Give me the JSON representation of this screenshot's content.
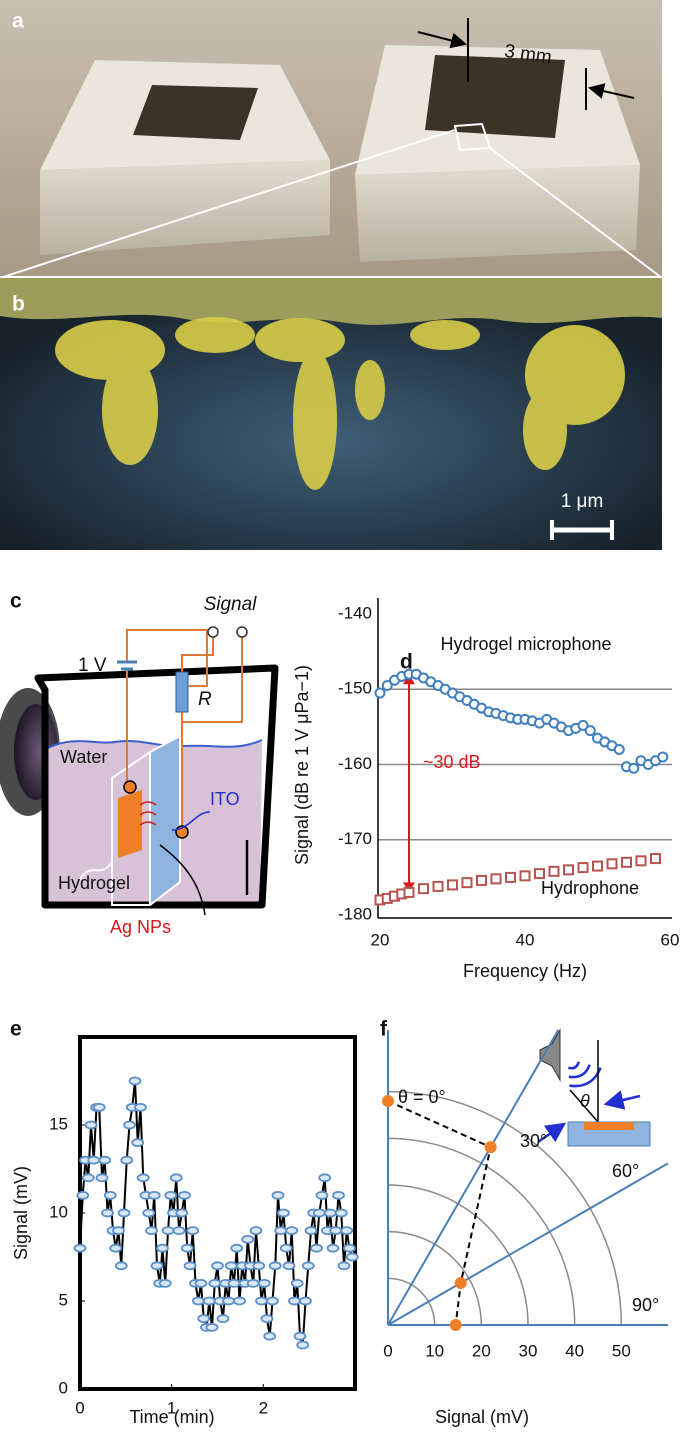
{
  "panel_a": {
    "label": "a",
    "scale_bar": "3 mm"
  },
  "panel_b": {
    "label": "b",
    "scale_bar": "1 μm"
  },
  "panel_c": {
    "label": "c",
    "signal": "Signal",
    "battery": "1 V",
    "resistor": "R",
    "water": "Water",
    "electrode": "ITO",
    "gel": "Hydrogel",
    "particles": "Ag NPs"
  },
  "chart_data": [
    {
      "label": "d",
      "type": "scatter",
      "xlabel": "Frequency (Hz)",
      "ylabel": "Signal (dB re 1 V μPa−1)",
      "xlim": [
        20,
        60
      ],
      "ylim": [
        -180,
        -140
      ],
      "xticks": [
        20,
        40,
        60
      ],
      "yticks": [
        -140,
        -150,
        -160,
        -170,
        -180
      ],
      "grid": true,
      "annotation": "~30 dB",
      "annotation_color": "#d7191c",
      "series": [
        {
          "name": "Hydrogel microphone",
          "color": "#3f7fbf",
          "marker": "circle",
          "x": [
            20,
            21,
            22,
            23,
            24,
            25,
            26,
            27,
            28,
            29,
            30,
            31,
            32,
            33,
            34,
            35,
            36,
            37,
            38,
            39,
            40,
            41,
            42,
            43,
            44,
            45,
            46,
            47,
            48,
            49,
            50,
            51,
            52,
            53,
            54,
            55,
            56,
            57,
            58,
            59
          ],
          "values": [
            -150.5,
            -149.5,
            -148.8,
            -148.3,
            -148,
            -148,
            -148.5,
            -149,
            -149.5,
            -150,
            -150.5,
            -151,
            -151.5,
            -152,
            -152.5,
            -153,
            -153.2,
            -153.5,
            -153.8,
            -154,
            -154,
            -154.2,
            -154.5,
            -154,
            -154.5,
            -155,
            -155.5,
            -155.2,
            -154.8,
            -155.5,
            -156.5,
            -157,
            -157.5,
            -158,
            -160.3,
            -160.5,
            -159.5,
            -160,
            -159.5,
            -159
          ]
        },
        {
          "name": "Hydrophone",
          "color": "#b85450",
          "marker": "square",
          "x": [
            20,
            21,
            22,
            23,
            24,
            26,
            28,
            30,
            32,
            34,
            36,
            38,
            40,
            42,
            44,
            46,
            48,
            50,
            52,
            54,
            56,
            58
          ],
          "values": [
            -178,
            -177.8,
            -177.5,
            -177.2,
            -177,
            -176.5,
            -176.2,
            -176,
            -175.7,
            -175.4,
            -175.2,
            -175,
            -174.8,
            -174.5,
            -174.2,
            -174,
            -173.7,
            -173.5,
            -173.2,
            -173,
            -172.8,
            -172.5
          ]
        }
      ]
    },
    {
      "label": "e",
      "type": "line",
      "xlabel": "Time (min)",
      "ylabel": "Signal (mV)",
      "xlim": [
        0,
        3
      ],
      "ylim": [
        0,
        20
      ],
      "xticks": [
        0,
        1,
        2
      ],
      "yticks": [
        0,
        5,
        10,
        15
      ],
      "color": "#000000",
      "marker_color": "#5b8fc9",
      "x": [
        0,
        0.03,
        0.06,
        0.09,
        0.12,
        0.15,
        0.18,
        0.21,
        0.24,
        0.27,
        0.3,
        0.33,
        0.36,
        0.39,
        0.42,
        0.45,
        0.48,
        0.51,
        0.54,
        0.57,
        0.6,
        0.63,
        0.66,
        0.69,
        0.72,
        0.75,
        0.78,
        0.81,
        0.84,
        0.87,
        0.9,
        0.93,
        0.96,
        0.99,
        1.02,
        1.05,
        1.08,
        1.11,
        1.14,
        1.17,
        1.2,
        1.23,
        1.26,
        1.29,
        1.32,
        1.35,
        1.38,
        1.41,
        1.44,
        1.47,
        1.5,
        1.53,
        1.56,
        1.59,
        1.62,
        1.65,
        1.68,
        1.71,
        1.74,
        1.77,
        1.8,
        1.83,
        1.86,
        1.89,
        1.92,
        1.95,
        1.98,
        2.01,
        2.04,
        2.07,
        2.1,
        2.13,
        2.16,
        2.19,
        2.22,
        2.25,
        2.28,
        2.31,
        2.34,
        2.37,
        2.4,
        2.43,
        2.46,
        2.49,
        2.52,
        2.55,
        2.58,
        2.61,
        2.64,
        2.67,
        2.7,
        2.73,
        2.76,
        2.79,
        2.82,
        2.85,
        2.88,
        2.91,
        2.94,
        2.97
      ],
      "values": [
        8,
        11,
        13,
        12,
        15,
        13,
        16,
        16,
        12,
        13,
        10,
        11,
        9,
        8,
        9,
        7,
        10,
        13,
        15,
        16,
        17.5,
        14,
        16,
        12,
        11,
        10,
        9,
        11,
        7,
        6,
        8,
        6,
        9,
        11,
        10,
        12,
        9,
        10,
        11,
        8,
        7,
        9,
        6,
        5,
        6,
        4,
        3.5,
        5,
        3.5,
        6,
        7,
        5,
        4,
        6,
        5,
        7,
        6,
        8,
        5,
        7,
        6,
        8.5,
        7,
        6,
        9,
        7,
        5,
        6,
        4,
        3,
        5,
        7,
        11,
        9,
        10,
        8,
        7,
        9,
        5,
        6,
        3,
        2.5,
        5,
        7,
        9,
        10,
        8,
        10,
        11,
        12,
        9,
        10,
        8,
        9,
        11,
        10,
        7,
        9,
        8,
        7.5
      ]
    },
    {
      "label": "f",
      "type": "polar",
      "xlabel": "Signal (mV)",
      "xlim": [
        0,
        60
      ],
      "xticks": [
        0,
        10,
        20,
        30,
        40,
        50
      ],
      "thetaticks": [
        {
          "value": 0,
          "label": "θ = 0°"
        },
        {
          "value": 30,
          "label": "30°"
        },
        {
          "value": 60,
          "label": "60°"
        },
        {
          "value": 90,
          "label": "90°"
        }
      ],
      "theta": [
        0,
        30,
        60,
        90
      ],
      "values": [
        48,
        44,
        18,
        14.5
      ],
      "color": "#f07f2a",
      "axis_color": "#4a7fb5",
      "inset_label": "θ"
    }
  ]
}
